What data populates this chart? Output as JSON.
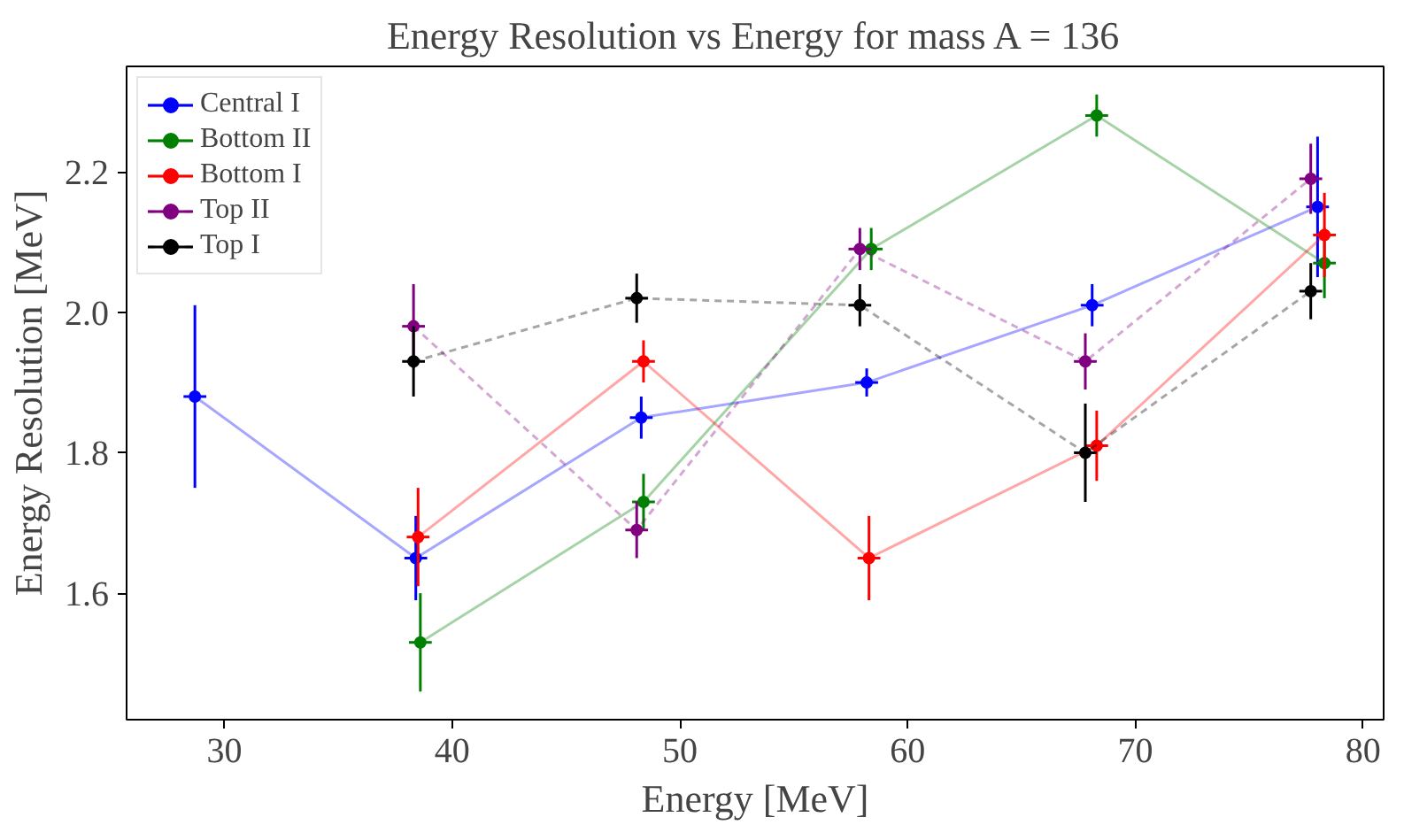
{
  "chart_data": {
    "type": "line",
    "title": "Energy Resolution vs Energy for mass A = 136",
    "xlabel": "Energy [MeV]",
    "ylabel": "Energy Resolution [MeV]",
    "xlim": [
      25.7,
      80.9
    ],
    "ylim": [
      1.42,
      2.35
    ],
    "xticks": [
      30,
      40,
      50,
      60,
      70,
      80
    ],
    "yticks": [
      {
        "value": 1.6,
        "label": "1.6"
      },
      {
        "value": 1.8,
        "label": "1.8"
      },
      {
        "value": 2.0,
        "label": "2.0"
      },
      {
        "value": 2.2,
        "label": "2.2"
      }
    ],
    "grid": false,
    "legend": "top left",
    "marker": "circle",
    "series": [
      {
        "name": "Central I",
        "color": "#0000ff",
        "line_style": "solid",
        "x": [
          28.7,
          38.4,
          48.3,
          58.2,
          68.1,
          78.0
        ],
        "values": [
          1.88,
          1.65,
          1.85,
          1.9,
          2.01,
          2.15
        ],
        "errors": [
          0.13,
          0.06,
          0.03,
          0.02,
          0.03,
          0.1
        ],
        "xerrors": [
          0.5,
          0.5,
          0.5,
          0.5,
          0.5,
          0.5
        ]
      },
      {
        "name": "Bottom II",
        "color": "#008000",
        "line_style": "solid",
        "x": [
          38.6,
          48.4,
          58.4,
          68.3,
          78.3
        ],
        "values": [
          1.53,
          1.73,
          2.09,
          2.28,
          2.07
        ],
        "errors": [
          0.07,
          0.04,
          0.03,
          0.03,
          0.05
        ],
        "xerrors": [
          0.5,
          0.5,
          0.5,
          0.5,
          0.5
        ]
      },
      {
        "name": "Bottom I",
        "color": "#ff0000",
        "line_style": "solid",
        "x": [
          38.5,
          48.4,
          58.3,
          68.3,
          78.3
        ],
        "values": [
          1.68,
          1.93,
          1.65,
          1.81,
          2.11
        ],
        "errors": [
          0.07,
          0.03,
          0.06,
          0.05,
          0.06
        ],
        "xerrors": [
          0.5,
          0.5,
          0.5,
          0.5,
          0.5
        ]
      },
      {
        "name": "Top II",
        "color": "#800080",
        "line_style": "dashed",
        "x": [
          38.3,
          48.1,
          57.9,
          67.8,
          77.7
        ],
        "values": [
          1.98,
          1.69,
          2.09,
          1.93,
          2.19
        ],
        "errors": [
          0.06,
          0.04,
          0.03,
          0.04,
          0.05
        ],
        "xerrors": [
          0.5,
          0.5,
          0.5,
          0.5,
          0.5
        ]
      },
      {
        "name": "Top I",
        "color": "#000000",
        "line_style": "dashed",
        "x": [
          38.3,
          48.1,
          57.9,
          67.8,
          77.7
        ],
        "values": [
          1.93,
          2.02,
          2.01,
          1.8,
          2.03
        ],
        "errors": [
          0.05,
          0.035,
          0.03,
          0.07,
          0.04
        ],
        "xerrors": [
          0.5,
          0.5,
          0.5,
          0.5,
          0.5
        ]
      }
    ]
  }
}
